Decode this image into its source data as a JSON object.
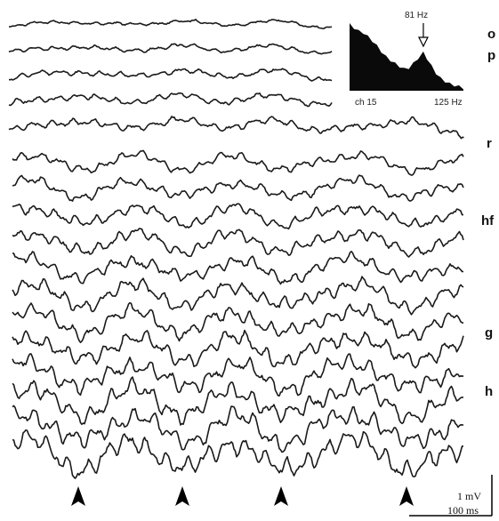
{
  "chart_data": {
    "type": "line",
    "title": "",
    "trace_count": 17,
    "layer_labels": [
      "o",
      "p",
      "r",
      "hf",
      "g",
      "h"
    ],
    "event_markers": 4,
    "scale_bar": {
      "voltage_label": "1 mV",
      "time_label": "100 ms"
    },
    "inset": {
      "type": "area",
      "title": "",
      "x_start_label": "ch 15",
      "x_end_label": "125 Hz",
      "peak_label": "81 Hz",
      "peak_freq_hz": 81,
      "xlim": [
        0,
        125
      ],
      "ylim": [
        0,
        1
      ],
      "x": [
        0,
        5,
        10,
        15,
        20,
        25,
        30,
        35,
        40,
        45,
        50,
        55,
        60,
        65,
        70,
        75,
        81,
        85,
        90,
        95,
        100,
        105,
        110,
        115,
        120,
        125
      ],
      "y": [
        0.98,
        0.93,
        0.88,
        0.86,
        0.8,
        0.74,
        0.66,
        0.58,
        0.5,
        0.45,
        0.4,
        0.36,
        0.32,
        0.34,
        0.4,
        0.48,
        0.56,
        0.48,
        0.36,
        0.26,
        0.18,
        0.14,
        0.1,
        0.08,
        0.06,
        0.04
      ]
    },
    "colors": {
      "trace": "#1a1a1a",
      "inset_fill": "#0a0a0a"
    }
  }
}
